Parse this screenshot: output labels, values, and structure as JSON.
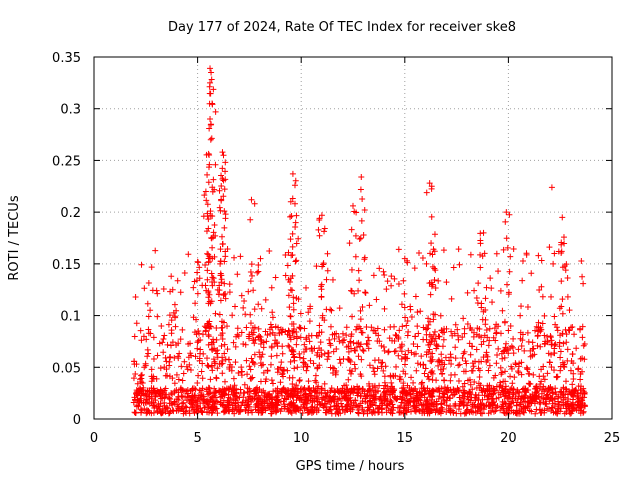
{
  "chart_data": {
    "type": "scatter",
    "title": "Day 177 of 2024, Rate Of TEC Index for receiver ske8",
    "xlabel": "GPS time / hours",
    "ylabel": "ROTI / TECUs",
    "xlim": [
      0,
      25
    ],
    "ylim": [
      0,
      0.35
    ],
    "xticks": [
      0,
      5,
      10,
      15,
      20,
      25
    ],
    "xtick_labels": [
      "0",
      "5",
      "10",
      "15",
      "20",
      "25"
    ],
    "yticks": [
      0,
      0.05,
      0.1,
      0.15,
      0.2,
      0.25,
      0.3,
      0.35
    ],
    "ytick_labels": [
      "0",
      "0.05",
      "0.1",
      "0.15",
      "0.2",
      "0.25",
      "0.3",
      "0.35"
    ],
    "grid": true,
    "marker": "+",
    "color": "#ff0000",
    "series": [
      {
        "name": "ROTI",
        "x_range": [
          1.9,
          23.7
        ],
        "typical_range": [
          0.005,
          0.08
        ],
        "notable_points": [
          {
            "x": 5.6,
            "y": 0.339
          },
          {
            "x": 5.65,
            "y": 0.335
          },
          {
            "x": 5.6,
            "y": 0.325
          },
          {
            "x": 5.7,
            "y": 0.305
          },
          {
            "x": 5.6,
            "y": 0.29
          },
          {
            "x": 5.65,
            "y": 0.285
          },
          {
            "x": 6.2,
            "y": 0.258
          },
          {
            "x": 6.25,
            "y": 0.255
          },
          {
            "x": 6.2,
            "y": 0.232
          },
          {
            "x": 9.6,
            "y": 0.237
          },
          {
            "x": 9.7,
            "y": 0.226
          },
          {
            "x": 9.5,
            "y": 0.21
          },
          {
            "x": 12.9,
            "y": 0.234
          },
          {
            "x": 16.2,
            "y": 0.228
          },
          {
            "x": 16.3,
            "y": 0.225
          },
          {
            "x": 22.1,
            "y": 0.224
          },
          {
            "x": 5.4,
            "y": 0.22
          },
          {
            "x": 7.6,
            "y": 0.212
          },
          {
            "x": 12.5,
            "y": 0.206
          },
          {
            "x": 19.9,
            "y": 0.2
          },
          {
            "x": 22.6,
            "y": 0.195
          },
          {
            "x": 11.0,
            "y": 0.197
          },
          {
            "x": 5.0,
            "y": 0.152
          },
          {
            "x": 3.8,
            "y": 0.125
          },
          {
            "x": 15.0,
            "y": 0.155
          },
          {
            "x": 18.8,
            "y": 0.18
          }
        ]
      }
    ]
  }
}
